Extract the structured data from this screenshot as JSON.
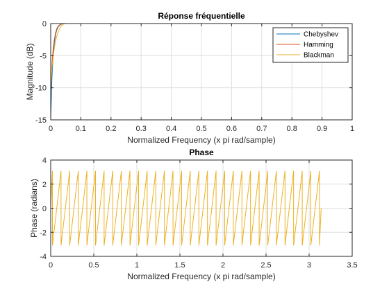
{
  "chart_data": [
    {
      "type": "line",
      "title": "Réponse fréquentielle",
      "xlabel": "Normalized Frequency (x pi rad/sample)",
      "ylabel": "Magnitude (dB)",
      "xlim": [
        0,
        1
      ],
      "ylim": [
        -15,
        0
      ],
      "xticks": [
        "0",
        "0.1",
        "0.2",
        "0.3",
        "0.4",
        "0.5",
        "0.6",
        "0.7",
        "0.8",
        "0.9",
        "1"
      ],
      "yticks": [
        "0",
        "-5",
        "-10",
        "-15"
      ],
      "grid": true,
      "legend_position": "top-right",
      "series": [
        {
          "name": "Chebyshev",
          "color": "#0072BD",
          "x": [
            0.0,
            0.004,
            0.008,
            0.012,
            0.016,
            0.02,
            0.025,
            0.03,
            0.035,
            0.04,
            0.05,
            1.0
          ],
          "y": [
            -15,
            -8.5,
            -5,
            -3,
            -1.8,
            -1.0,
            -0.5,
            -0.25,
            -0.1,
            -0.03,
            0,
            0
          ]
        },
        {
          "name": "Hamming",
          "color": "#D95319",
          "x": [
            0.0,
            0.004,
            0.008,
            0.012,
            0.016,
            0.02,
            0.025,
            0.03,
            0.035,
            0.04,
            0.05,
            1.0
          ],
          "y": [
            -11,
            -6.5,
            -4,
            -2.5,
            -1.5,
            -0.8,
            -0.4,
            -0.2,
            -0.08,
            -0.02,
            0,
            0
          ]
        },
        {
          "name": "Blackman",
          "color": "#EDB120",
          "x": [
            0.0,
            0.005,
            0.01,
            0.015,
            0.02,
            0.025,
            0.03,
            0.035,
            0.04,
            0.045,
            0.05,
            1.0
          ],
          "y": [
            -9.5,
            -6.5,
            -4.5,
            -3,
            -2,
            -1.3,
            -0.8,
            -0.4,
            -0.15,
            -0.05,
            0,
            0
          ]
        }
      ]
    },
    {
      "type": "line",
      "title": "Phase",
      "xlabel": "Normalized Frequency (x pi rad/sample)",
      "ylabel": "Phase (radians)",
      "xlim": [
        0,
        3.5
      ],
      "ylim": [
        -4,
        4
      ],
      "xticks": [
        "0",
        "0.5",
        "1",
        "1.5",
        "2",
        "2.5",
        "3",
        "3.5"
      ],
      "yticks": [
        "4",
        "2",
        "0",
        "-2",
        "-4"
      ],
      "grid": true,
      "series": [
        {
          "color": "#EDB120",
          "waveform": "sawtooth",
          "x_start": 0,
          "x_end": 3.14,
          "first_peak_x": 0.02,
          "period": 0.1,
          "y_min": -3.1,
          "y_max": 3.1,
          "y_end": 0
        }
      ]
    }
  ]
}
